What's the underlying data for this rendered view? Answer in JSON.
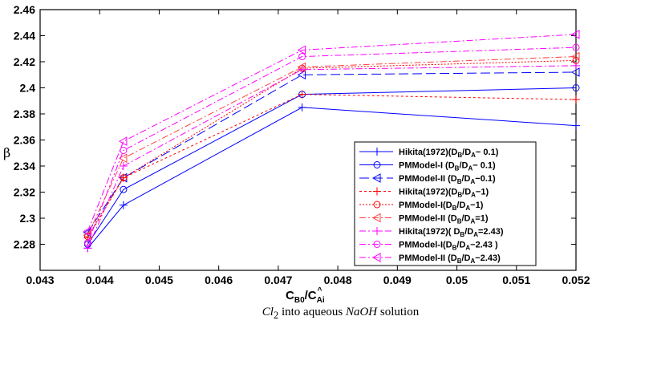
{
  "chart_data": {
    "type": "line",
    "title": "",
    "xlabel": "C_B0/C_Ai^",
    "ylabel": "β",
    "caption": {
      "pre": "Cl",
      "sub": "2",
      "mid": " into aqueous ",
      "italic": "NaOH",
      "post": " solution"
    },
    "xlim": [
      0.043,
      0.052
    ],
    "ylim": [
      2.26,
      2.46
    ],
    "xticks": [
      "0.043",
      "0.044",
      "0.045",
      "0.046",
      "0.047",
      "0.048",
      "0.049",
      "0.05",
      "0.051",
      "0.052"
    ],
    "yticks": [
      "2.28",
      "2.3",
      "2.32",
      "2.34",
      "2.36",
      "2.38",
      "2.4",
      "2.42",
      "2.44",
      "2.46"
    ],
    "grid": false,
    "legend_position": "lower-right",
    "x": [
      0.0438,
      0.0444,
      0.0474,
      0.052
    ],
    "series": [
      {
        "name": "Hikita(1972)(DB/DA− 0.1)",
        "ratio": "0.1",
        "label": "Hikita(1972)(D_B/D_A− 0.1)",
        "color": "#0000ff",
        "marker": "plus",
        "dash": "solid",
        "values": [
          2.277,
          2.31,
          2.385,
          2.371
        ]
      },
      {
        "name": "PMModel-I (DB/DA− 0.1)",
        "label": "PMModel-I (D_B/D_A− 0.1)",
        "color": "#0000ff",
        "marker": "circle",
        "dash": "solid",
        "values": [
          2.28,
          2.322,
          2.395,
          2.4
        ]
      },
      {
        "name": "PMModel-II (DB/DA−0.1)",
        "label": "PMModel-II (D_B/D_A−0.1)",
        "color": "#0000ff",
        "marker": "triangle-left",
        "dash": "longdash",
        "values": [
          2.289,
          2.331,
          2.41,
          2.412
        ]
      },
      {
        "name": "Hikita(1972)(DB/DA−1)",
        "label": "Hikita(1972)(D_B/D_A−1)",
        "color": "#ff0000",
        "marker": "plus",
        "dash": "dashed",
        "values": [
          2.285,
          2.331,
          2.395,
          2.391
        ]
      },
      {
        "name": "PMModel-I(DB/DA−1)",
        "label": "PMModel-I(D_B/D_A−1)",
        "color": "#ff0000",
        "marker": "circle",
        "dash": "dotted",
        "values": [
          2.286,
          2.331,
          2.415,
          2.421
        ]
      },
      {
        "name": "PMModel-II (DB/DA=1)",
        "label": "PMModel-II (D_B/D_A=1)",
        "color": "#ff4040",
        "marker": "triangle-left",
        "dash": "dashdot",
        "values": [
          2.287,
          2.346,
          2.416,
          2.424
        ]
      },
      {
        "name": "Hikita(1972)( DB/DA=2.43)",
        "label": " Hikita(1972)( D_B/D_A=2.43)",
        "color": "#ff00ff",
        "marker": "plus",
        "dash": "dashdot",
        "values": [
          2.277,
          2.34,
          2.414,
          2.417
        ]
      },
      {
        "name": "PMModel-I(DB/DA−2.43 )",
        "label": "PMModel-I(D_B/D_A−2.43 )",
        "color": "#ff00ff",
        "marker": "circle",
        "dash": "dashdot",
        "values": [
          2.281,
          2.352,
          2.424,
          2.431
        ]
      },
      {
        "name": "PMModel-II (DB/DA−2.43)",
        "label": "PMModel-II (D_B/D_A−2.43)",
        "color": "#ff00ff",
        "marker": "triangle-left",
        "dash": "dashdot",
        "values": [
          2.29,
          2.359,
          2.429,
          2.441
        ]
      }
    ]
  }
}
